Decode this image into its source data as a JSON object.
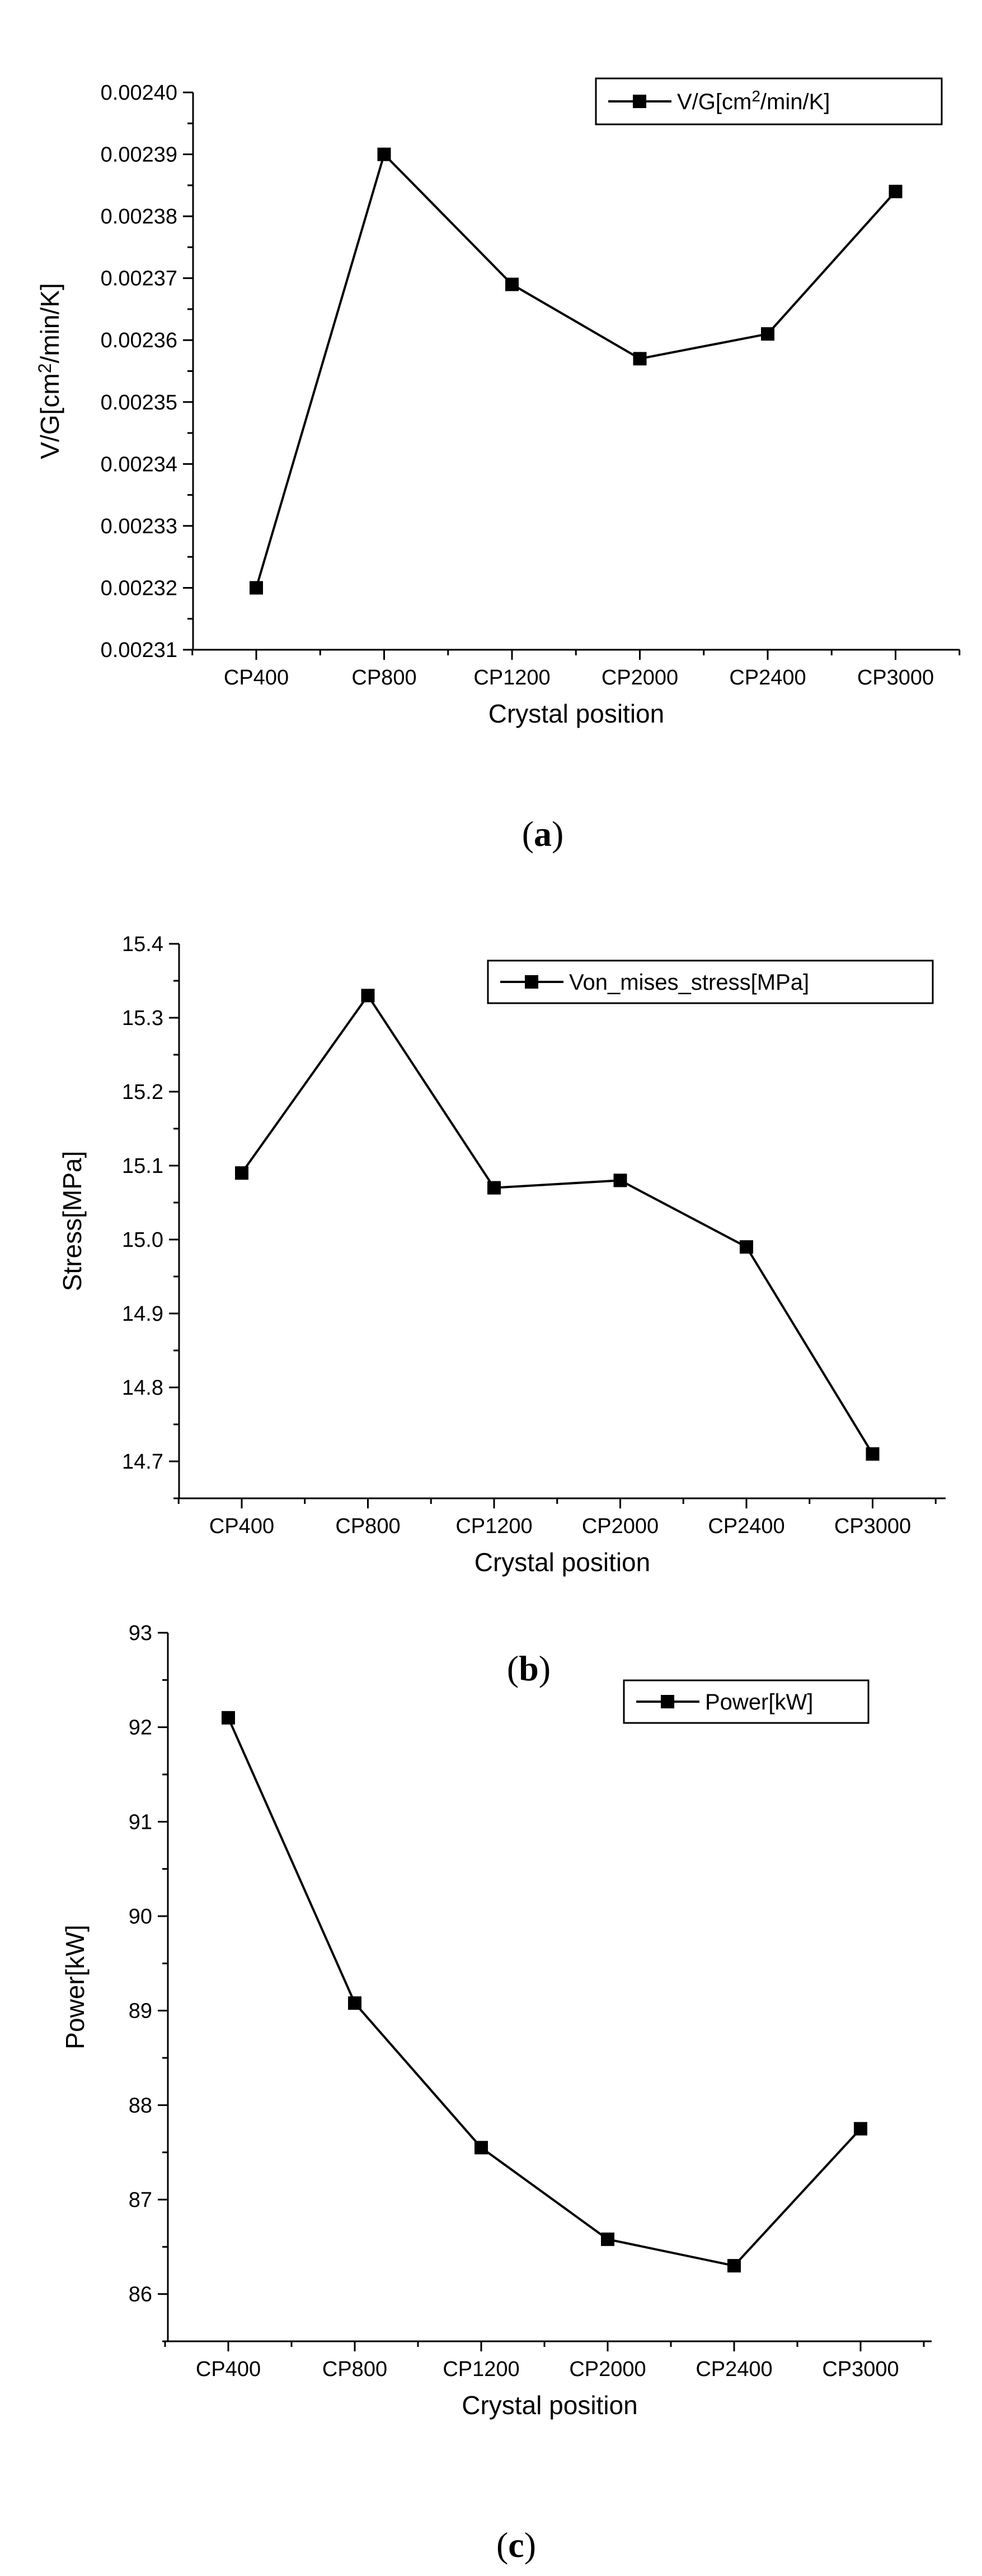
{
  "chart_data": [
    {
      "type": "line",
      "panel_label": "(a)",
      "panel_letter": "a",
      "categories": [
        "CP400",
        "CP800",
        "CP1200",
        "CP2000",
        "CP2400",
        "CP3000"
      ],
      "series": [
        {
          "name": "V/G[cm²/min/K]",
          "values": [
            0.00232,
            0.00239,
            0.002369,
            0.002357,
            0.002361,
            0.002384
          ]
        }
      ],
      "xlabel": "Crystal position",
      "ylabel": "V/G[cm²/min/K]",
      "ylim": [
        0.00231,
        0.0024
      ],
      "yticks": [
        0.00231,
        0.00232,
        0.00233,
        0.00234,
        0.00235,
        0.00236,
        0.00237,
        0.00238,
        0.00239,
        0.0024
      ],
      "ytick_decimals": 5,
      "legend_position": "top-right",
      "marker": "square",
      "grid": false
    },
    {
      "type": "line",
      "panel_label": "(b)",
      "panel_letter": "b",
      "categories": [
        "CP400",
        "CP800",
        "CP1200",
        "CP2000",
        "CP2400",
        "CP3000"
      ],
      "series": [
        {
          "name": "Von_mises_stress[MPa]",
          "values": [
            15.09,
            15.33,
            15.07,
            15.08,
            14.99,
            14.71
          ]
        }
      ],
      "xlabel": "Crystal position",
      "ylabel": "Stress[MPa]",
      "ylim": [
        14.65,
        15.4
      ],
      "yticks": [
        14.7,
        14.8,
        14.9,
        15.0,
        15.1,
        15.2,
        15.3,
        15.4
      ],
      "ytick_decimals": 1,
      "legend_position": "top-right",
      "marker": "square",
      "grid": false
    },
    {
      "type": "line",
      "panel_label": "(c)",
      "panel_letter": "c",
      "categories": [
        "CP400",
        "CP800",
        "CP1200",
        "CP2000",
        "CP2400",
        "CP3000"
      ],
      "series": [
        {
          "name": "Power[kW]",
          "values": [
            92.1,
            89.08,
            87.55,
            86.58,
            86.3,
            87.75
          ]
        }
      ],
      "xlabel": "Crystal position",
      "ylabel": "Power[kW]",
      "ylim": [
        85.5,
        93
      ],
      "yticks": [
        86,
        87,
        88,
        89,
        90,
        91,
        92,
        93
      ],
      "ytick_decimals": 0,
      "legend_position": "top-right",
      "marker": "square",
      "grid": false
    }
  ]
}
